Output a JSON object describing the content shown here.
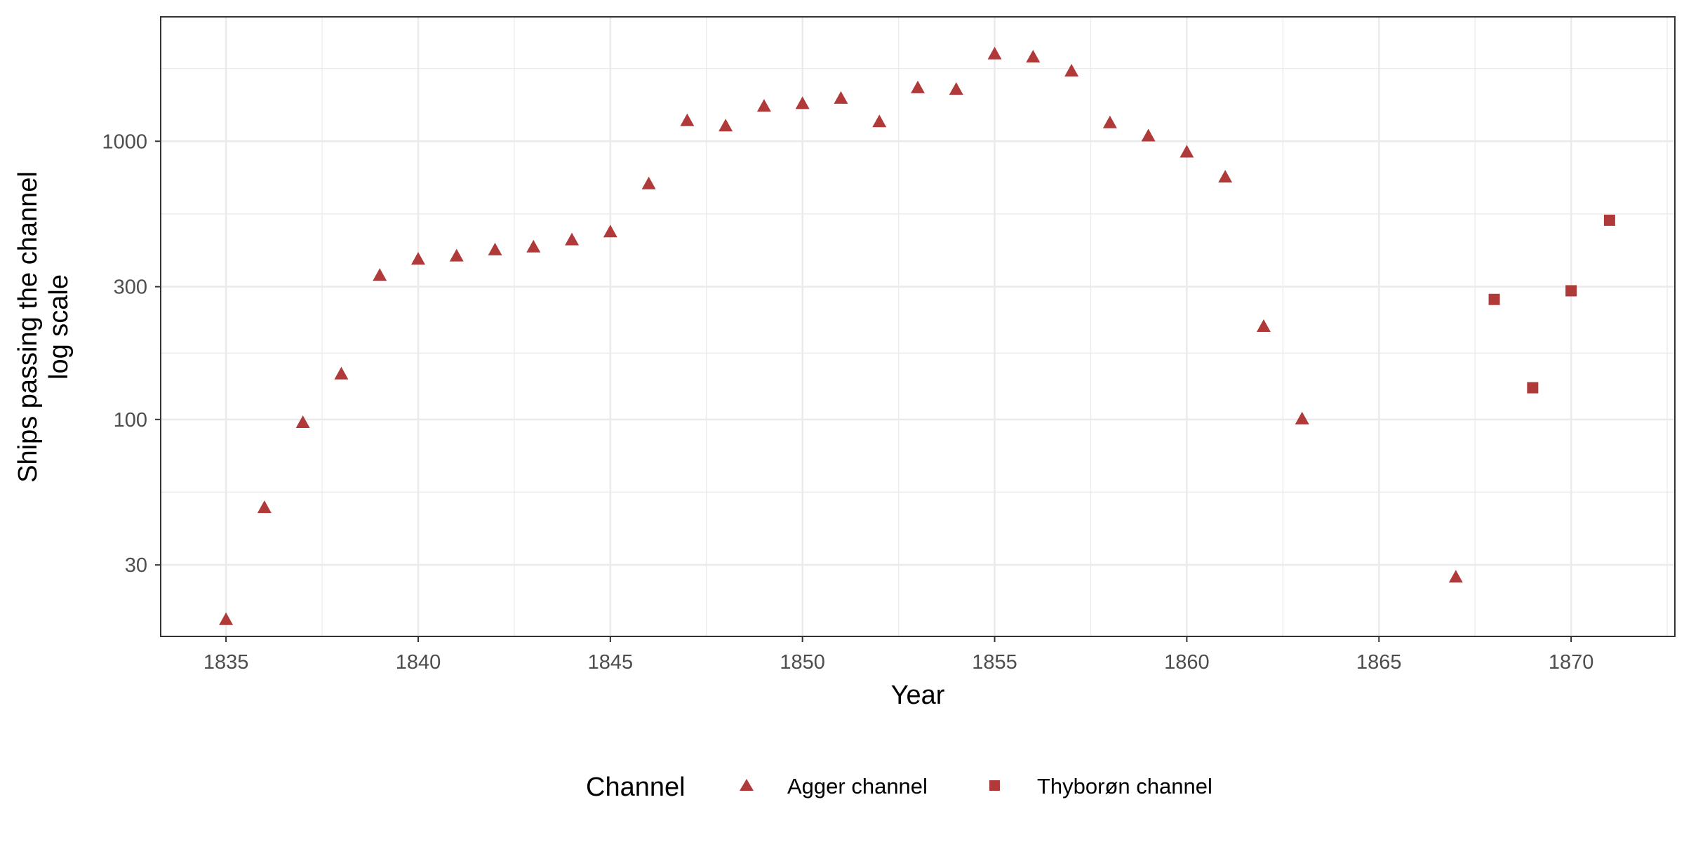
{
  "chart_data": {
    "type": "scatter",
    "title": "",
    "xlabel": "Year",
    "ylabel": "Ships passing the channel",
    "ylabel_line2": "log scale",
    "y_scale": "log",
    "xlim": [
      1833.3,
      1872.7
    ],
    "ylim": [
      16.6,
      2800
    ],
    "x_ticks": [
      1835,
      1840,
      1845,
      1850,
      1855,
      1860,
      1865,
      1870
    ],
    "y_ticks": [
      30,
      100,
      300,
      1000
    ],
    "grid": true,
    "legend_title": "Channel",
    "legend_position": "bottom",
    "marker_color": "#B03A3A",
    "series": [
      {
        "name": "Agger channel",
        "marker": "triangle",
        "points": [
          [
            1835,
            19
          ],
          [
            1836,
            48
          ],
          [
            1837,
            97
          ],
          [
            1838,
            145
          ],
          [
            1839,
            328
          ],
          [
            1840,
            375
          ],
          [
            1841,
            385
          ],
          [
            1842,
            405
          ],
          [
            1843,
            415
          ],
          [
            1844,
            440
          ],
          [
            1845,
            470
          ],
          [
            1846,
            700
          ],
          [
            1847,
            1180
          ],
          [
            1848,
            1130
          ],
          [
            1849,
            1330
          ],
          [
            1850,
            1360
          ],
          [
            1851,
            1420
          ],
          [
            1852,
            1170
          ],
          [
            1853,
            1550
          ],
          [
            1854,
            1530
          ],
          [
            1855,
            2050
          ],
          [
            1856,
            2000
          ],
          [
            1857,
            1780
          ],
          [
            1858,
            1160
          ],
          [
            1859,
            1040
          ],
          [
            1860,
            910
          ],
          [
            1861,
            740
          ],
          [
            1862,
            215
          ],
          [
            1863,
            100
          ],
          [
            1867,
            27
          ]
        ]
      },
      {
        "name": "Thyborøn channel",
        "marker": "square",
        "points": [
          [
            1868,
            270
          ],
          [
            1869,
            130
          ],
          [
            1870,
            290
          ],
          [
            1871,
            520
          ]
        ]
      }
    ]
  }
}
